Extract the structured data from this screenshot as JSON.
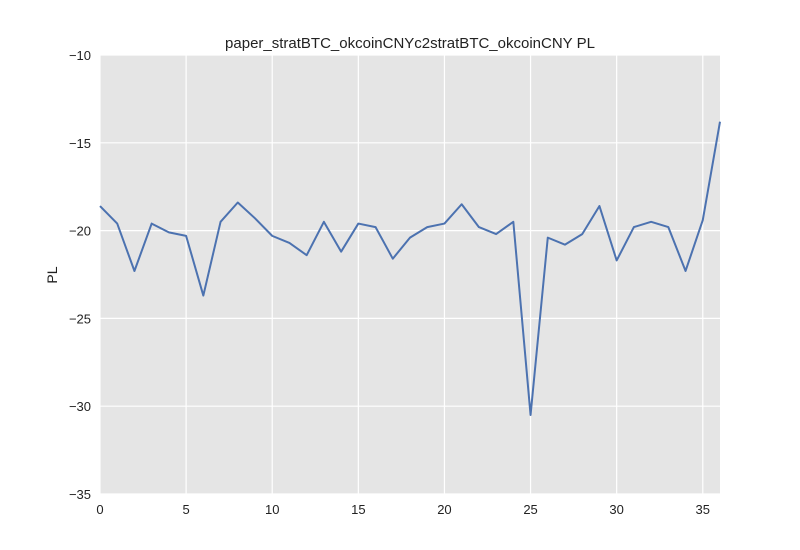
{
  "chart_data": {
    "type": "line",
    "title": "paper_stratBTC_okcoinCNYc2stratBTC_okcoinCNY PL",
    "xlabel": "",
    "ylabel": "PL",
    "xlim": [
      0,
      36
    ],
    "ylim": [
      -35,
      -10
    ],
    "xticks": [
      0,
      5,
      10,
      15,
      20,
      25,
      30,
      35
    ],
    "yticks": [
      -35,
      -30,
      -25,
      -20,
      -15,
      -10
    ],
    "xtick_labels": [
      "0",
      "5",
      "10",
      "15",
      "20",
      "25",
      "30",
      "35"
    ],
    "ytick_labels": [
      "−35",
      "−30",
      "−25",
      "−20",
      "−15",
      "−10"
    ],
    "grid": true,
    "background": "#e5e5e5",
    "line_color": "#4c72b0",
    "x": [
      0,
      1,
      2,
      3,
      4,
      5,
      6,
      7,
      8,
      9,
      10,
      11,
      12,
      13,
      14,
      15,
      16,
      17,
      18,
      19,
      20,
      21,
      22,
      23,
      24,
      25,
      26,
      27,
      28,
      29,
      30,
      31,
      32,
      33,
      34,
      35,
      36
    ],
    "values": [
      -18.6,
      -19.6,
      -22.3,
      -19.6,
      -20.1,
      -20.3,
      -23.7,
      -19.5,
      -18.4,
      -19.3,
      -20.3,
      -20.7,
      -21.4,
      -19.5,
      -21.2,
      -19.6,
      -19.8,
      -21.6,
      -20.4,
      -19.8,
      -19.6,
      -18.5,
      -19.8,
      -20.2,
      -19.5,
      -30.5,
      -20.4,
      -20.8,
      -20.2,
      -18.6,
      -21.7,
      -19.8,
      -19.5,
      -19.8,
      -22.3,
      -19.4,
      -13.8
    ]
  }
}
